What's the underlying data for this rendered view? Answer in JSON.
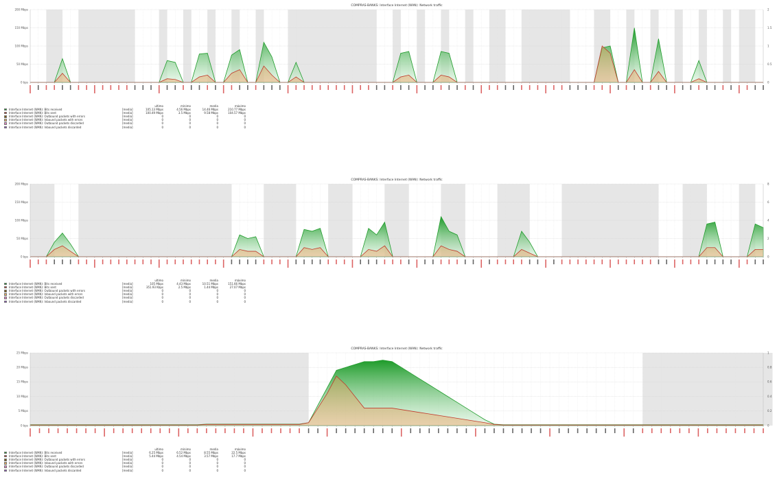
{
  "colors": {
    "received": "#1e9b2a",
    "sent": "#c0392b",
    "weekend_band": "#e6e6e6",
    "grid": "#e4e4e4",
    "xlabel_weekend": "#d03030",
    "xlabel_weekday": "#333333"
  },
  "legend_headers": {
    "last": "ultimo",
    "min": "mínimo",
    "avg": "media",
    "max": "máximo"
  },
  "legend_kind": "[media]",
  "chart_data": [
    {
      "type": "area",
      "title": "COMPRAS-BANKS: Interface Internet (WAN): Network traffic",
      "y_ticks": [
        "0 bps",
        "50 Mbps",
        "100 Mbps",
        "150 Mbps",
        "200 Mbps"
      ],
      "y_right_ticks": [
        "0",
        "0.5",
        "1",
        "1.5",
        "2"
      ],
      "ylim": [
        0,
        200
      ],
      "n_points": 92,
      "bands": [
        [
          2,
          4
        ],
        [
          6,
          13
        ],
        [
          16,
          17
        ],
        [
          19,
          20
        ],
        [
          22,
          23
        ],
        [
          25,
          26
        ],
        [
          28,
          29
        ],
        [
          32,
          34
        ],
        [
          34,
          43
        ],
        [
          45,
          46
        ],
        [
          48,
          49
        ],
        [
          51,
          52
        ],
        [
          54,
          55
        ],
        [
          57,
          59
        ],
        [
          61,
          67
        ],
        [
          70,
          72
        ],
        [
          74,
          75
        ],
        [
          77,
          78
        ],
        [
          80,
          81
        ],
        [
          83,
          84
        ],
        [
          86,
          87
        ],
        [
          88,
          90
        ]
      ],
      "series": [
        {
          "name": "Interface Internet (WAN): Bits received",
          "values": [
            0,
            0,
            0,
            0,
            65,
            0,
            0,
            0,
            0,
            0,
            0,
            0,
            0,
            0,
            0,
            0,
            0,
            60,
            55,
            0,
            0,
            78,
            80,
            0,
            0,
            75,
            90,
            0,
            0,
            110,
            70,
            0,
            0,
            55,
            0,
            0,
            0,
            0,
            0,
            0,
            0,
            0,
            0,
            0,
            0,
            0,
            80,
            85,
            0,
            0,
            0,
            85,
            80,
            0,
            0,
            0,
            0,
            0,
            0,
            0,
            0,
            0,
            0,
            0,
            0,
            0,
            0,
            0,
            0,
            0,
            0,
            95,
            100,
            0,
            0,
            150,
            0,
            0,
            120,
            0,
            0,
            0,
            0,
            60,
            0,
            0,
            0,
            0,
            0,
            0,
            0,
            0
          ]
        },
        {
          "name": "Interface Internet (WAN): Bits sent",
          "values": [
            0,
            0,
            0,
            0,
            25,
            0,
            0,
            0,
            0,
            0,
            0,
            0,
            0,
            0,
            0,
            0,
            0,
            10,
            8,
            0,
            0,
            15,
            20,
            0,
            0,
            25,
            35,
            0,
            0,
            45,
            20,
            0,
            0,
            15,
            0,
            0,
            0,
            0,
            0,
            0,
            0,
            0,
            0,
            0,
            0,
            0,
            15,
            20,
            0,
            0,
            0,
            20,
            15,
            0,
            0,
            0,
            0,
            0,
            0,
            0,
            0,
            0,
            0,
            0,
            0,
            0,
            0,
            0,
            0,
            0,
            0,
            100,
            80,
            0,
            0,
            35,
            0,
            0,
            30,
            0,
            0,
            0,
            0,
            10,
            0,
            0,
            0,
            0,
            0,
            0,
            0,
            0
          ]
        }
      ],
      "legend": [
        {
          "name": "Interface Internet (WAN): Bits received",
          "color": "#1e9b2a",
          "last": "105.13 Mbps",
          "min": "4.56 Mbps",
          "avg": "14.46 Mbps",
          "max": "210.77 Mbps"
        },
        {
          "name": "Interface Internet (WAN): Bits sent",
          "color": "#c0392b",
          "last": "100.49 Mbps",
          "min": "3.5 Mbps",
          "avg": "9.58 Mbps",
          "max": "104.57 Mbps"
        },
        {
          "name": "Interface Internet (WAN): Outbound packets with errors",
          "color": "#7a5a12",
          "last": "0",
          "min": "0",
          "avg": "0",
          "max": "0"
        },
        {
          "name": "Interface Internet (WAN): Inbound packets with errors",
          "color": "#e0a860",
          "last": "0",
          "min": "0",
          "avg": "0",
          "max": "0"
        },
        {
          "name": "Interface Internet (WAN): Outbound packets discarded",
          "color": "#e080c0",
          "last": "0",
          "min": "0",
          "avg": "0",
          "max": "0"
        },
        {
          "name": "Interface Internet (WAN): Inbound packets discarded",
          "color": "#8a4cc0",
          "last": "0",
          "min": "0",
          "avg": "0",
          "max": "0"
        }
      ]
    },
    {
      "type": "area",
      "title": "COMPRAS-BANKS: Interface Internet (WAN): Network traffic",
      "y_ticks": [
        "0 bps",
        "50 Mbps",
        "100 Mbps",
        "150 Mbps",
        "200 Mbps"
      ],
      "y_right_ticks": [
        "0",
        "2",
        "4",
        "6",
        "8"
      ],
      "ylim": [
        0,
        200
      ],
      "n_points": 92,
      "bands": [
        [
          0,
          3
        ],
        [
          6,
          25
        ],
        [
          29,
          33
        ],
        [
          37,
          40
        ],
        [
          44,
          47
        ],
        [
          51,
          54
        ],
        [
          58,
          62
        ],
        [
          66,
          78
        ],
        [
          81,
          84
        ],
        [
          88,
          90
        ]
      ],
      "series": [
        {
          "name": "Interface Internet (WAN): Bits received",
          "values": [
            0,
            0,
            0,
            40,
            65,
            35,
            0,
            0,
            0,
            0,
            0,
            0,
            0,
            0,
            0,
            0,
            0,
            0,
            0,
            0,
            0,
            0,
            0,
            0,
            0,
            0,
            60,
            50,
            55,
            0,
            0,
            0,
            0,
            0,
            75,
            70,
            78,
            0,
            0,
            0,
            0,
            0,
            78,
            60,
            95,
            0,
            0,
            0,
            0,
            0,
            0,
            110,
            70,
            60,
            0,
            0,
            0,
            0,
            0,
            0,
            0,
            70,
            40,
            0,
            0,
            0,
            0,
            0,
            0,
            0,
            0,
            0,
            0,
            0,
            0,
            0,
            0,
            0,
            0,
            0,
            0,
            0,
            0,
            0,
            90,
            95,
            0,
            0,
            0,
            0,
            90,
            80
          ]
        },
        {
          "name": "Interface Internet (WAN): Bits sent",
          "values": [
            0,
            0,
            0,
            20,
            30,
            15,
            0,
            0,
            0,
            0,
            0,
            0,
            0,
            0,
            0,
            0,
            0,
            0,
            0,
            0,
            0,
            0,
            0,
            0,
            0,
            0,
            20,
            15,
            15,
            0,
            0,
            0,
            0,
            0,
            25,
            20,
            25,
            0,
            0,
            0,
            0,
            0,
            20,
            15,
            30,
            0,
            0,
            0,
            0,
            0,
            0,
            30,
            20,
            15,
            0,
            0,
            0,
            0,
            0,
            0,
            0,
            20,
            10,
            0,
            0,
            0,
            0,
            0,
            0,
            0,
            0,
            0,
            0,
            0,
            0,
            0,
            0,
            0,
            0,
            0,
            0,
            0,
            0,
            0,
            25,
            25,
            0,
            0,
            0,
            0,
            20,
            20
          ]
        }
      ],
      "legend": [
        {
          "name": "Interface Internet (WAN): Bits received",
          "color": "#1e9b2a",
          "last": "105 Mbps",
          "min": "4.43 Mbps",
          "avg": "10.51 Mbps",
          "max": "151.66 Mbps"
        },
        {
          "name": "Interface Internet (WAN): Bits sent",
          "color": "#c0392b",
          "last": "351.93 Kbps",
          "min": "2.5 Mbps",
          "avg": "1.44 Mbps",
          "max": "27.07 Mbps"
        },
        {
          "name": "Interface Internet (WAN): Outbound packets with errors",
          "color": "#7a5a12",
          "last": "0",
          "min": "0",
          "avg": "0",
          "max": "0"
        },
        {
          "name": "Interface Internet (WAN): Inbound packets with errors",
          "color": "#e0a860",
          "last": "0",
          "min": "0",
          "avg": "0",
          "max": "0"
        },
        {
          "name": "Interface Internet (WAN): Outbound packets discarded",
          "color": "#e080c0",
          "last": "0",
          "min": "0",
          "avg": "0",
          "max": "0"
        },
        {
          "name": "Interface Internet (WAN): Inbound packets discarded",
          "color": "#8a4cc0",
          "last": "0",
          "min": "0",
          "avg": "0",
          "max": "0"
        }
      ]
    },
    {
      "type": "area",
      "title": "COMPRAS-BANKS: Interface Internet (WAN): Network traffic",
      "y_ticks": [
        "0 bps",
        "5 Mbps",
        "10 Mbps",
        "15 Mbps",
        "20 Mbps",
        "25 Mbps"
      ],
      "y_right_ticks": [
        "0",
        "0.2",
        "0.4",
        "0.6",
        "0.8",
        "1"
      ],
      "ylim": [
        0,
        25
      ],
      "n_points": 80,
      "bands": [
        [
          0,
          30
        ],
        [
          66,
          80
        ]
      ],
      "series": [
        {
          "name": "Interface Internet (WAN): Bits received",
          "values": [
            0.3,
            0.3,
            0.3,
            0.3,
            0.3,
            0.3,
            0.3,
            0.3,
            0.3,
            0.3,
            0.3,
            0.3,
            0.3,
            0.3,
            0.3,
            0.3,
            0.3,
            0.3,
            0.3,
            0.5,
            0.5,
            0.5,
            0.5,
            0.5,
            0.5,
            0.5,
            0.5,
            0.5,
            0.5,
            0.5,
            1,
            7,
            13,
            19,
            20,
            21,
            22,
            22,
            22.5,
            22,
            20,
            18,
            16,
            14,
            12,
            10,
            8,
            6,
            4,
            2,
            0.5,
            0.3,
            0.3,
            0.3,
            0.3,
            0.3,
            0.3,
            0.3,
            0.3,
            0.3,
            0.3,
            0.3,
            0.3,
            0.3,
            0.3,
            0.3,
            0.3,
            0.3,
            0.3,
            0.3,
            0.3,
            0.3,
            0.3,
            0.3,
            0.3,
            0.3,
            0.3,
            0.3,
            0.3,
            0.3
          ]
        },
        {
          "name": "Interface Internet (WAN): Bits sent",
          "values": [
            0.2,
            0.2,
            0.2,
            0.2,
            0.2,
            0.2,
            0.2,
            0.2,
            0.2,
            0.2,
            0.2,
            0.2,
            0.2,
            0.2,
            0.2,
            0.2,
            0.2,
            0.2,
            0.2,
            0.4,
            0.4,
            0.4,
            0.4,
            0.4,
            0.4,
            0.4,
            0.4,
            0.4,
            0.4,
            0.4,
            1,
            6,
            11,
            17,
            14,
            10,
            6,
            6,
            6,
            6,
            5.5,
            5,
            4.5,
            4,
            3.5,
            3,
            2.5,
            2,
            1.5,
            1,
            0.4,
            0.2,
            0.2,
            0.2,
            0.2,
            0.2,
            0.2,
            0.2,
            0.2,
            0.2,
            0.2,
            0.2,
            0.2,
            0.2,
            0.2,
            0.2,
            0.2,
            0.2,
            0.2,
            0.2,
            0.2,
            0.2,
            0.2,
            0.2,
            0.2,
            0.2,
            0.2,
            0.2,
            0.2,
            0.2
          ]
        }
      ],
      "legend": [
        {
          "name": "Interface Internet (WAN): Bits received",
          "color": "#1e9b2a",
          "last": "6.25 Mbps",
          "min": "6.52 Mbps",
          "avg": "8.55 Mbps",
          "max": "22.5 Mbps"
        },
        {
          "name": "Interface Internet (WAN): Bits sent",
          "color": "#c0392b",
          "last": "5.44 Mbps",
          "min": "4.54 Mbps",
          "avg": "3.57 Mbps",
          "max": "17.7 Mbps"
        },
        {
          "name": "Interface Internet (WAN): Outbound packets with errors",
          "color": "#7a5a12",
          "last": "0",
          "min": "0",
          "avg": "0",
          "max": "0"
        },
        {
          "name": "Interface Internet (WAN): Inbound packets with errors",
          "color": "#e0a860",
          "last": "0",
          "min": "0",
          "avg": "0",
          "max": "0"
        },
        {
          "name": "Interface Internet (WAN): Outbound packets discarded",
          "color": "#e080c0",
          "last": "0",
          "min": "0",
          "avg": "0",
          "max": "0"
        },
        {
          "name": "Interface Internet (WAN): Inbound packets discarded",
          "color": "#8a4cc0",
          "last": "0",
          "min": "0",
          "avg": "0",
          "max": "0"
        }
      ]
    }
  ]
}
